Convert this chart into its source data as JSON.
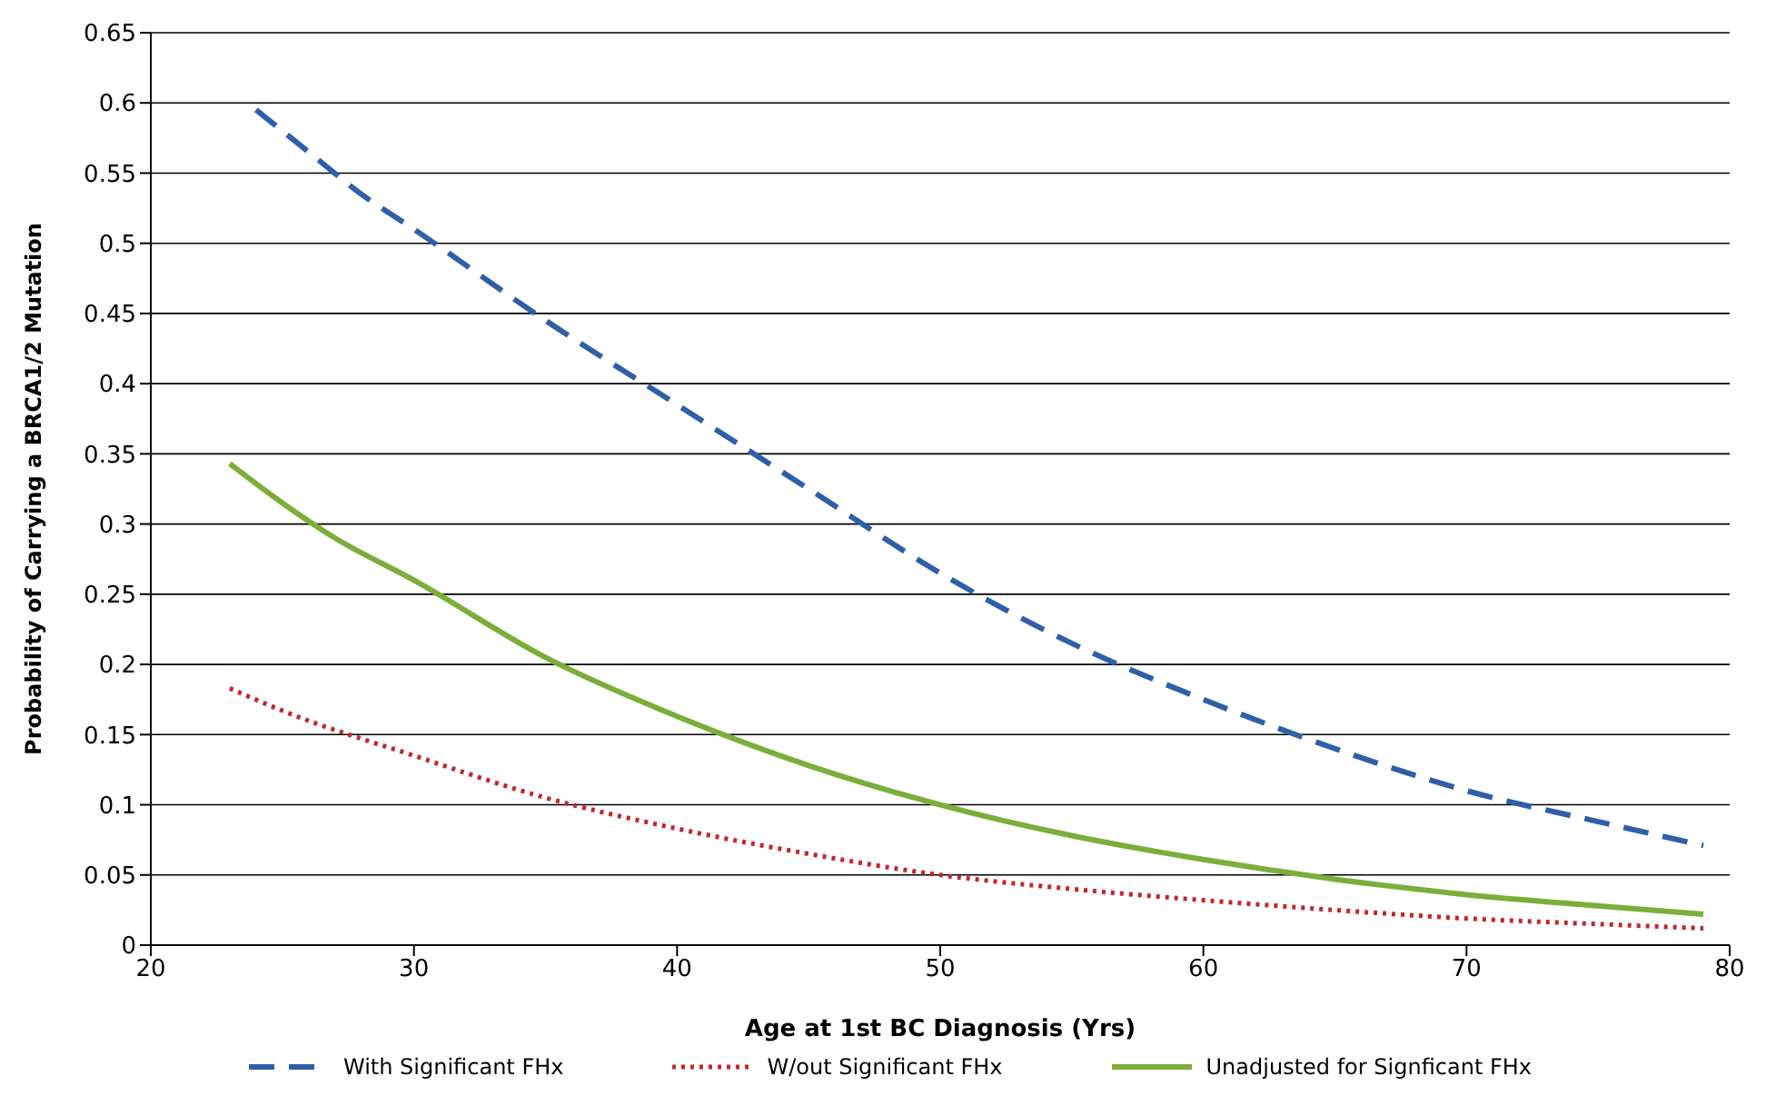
{
  "chart_data": {
    "type": "line",
    "xlabel": "Age at 1st BC Diagnosis (Yrs)",
    "ylabel": "Probability of Carrying a BRCA1/2 Mutation",
    "xlim": [
      20,
      80
    ],
    "xticks": [
      20,
      30,
      40,
      50,
      60,
      70,
      80
    ],
    "ylim": [
      0,
      0.65
    ],
    "yticks": [
      0,
      0.05,
      0.1,
      0.15,
      0.2,
      0.25,
      0.3,
      0.35,
      0.4,
      0.45,
      0.5,
      0.55,
      0.6,
      0.65
    ],
    "grid": "y",
    "legend": "bottom",
    "marker": "none",
    "series": [
      {
        "name": "With Significant FHx",
        "color": "#2e5fa8",
        "line_style": "dashed",
        "x": [
          24,
          26,
          28,
          30,
          35,
          40,
          45,
          50,
          55,
          60,
          65,
          70,
          75,
          79
        ],
        "values": [
          0.595,
          0.565,
          0.535,
          0.51,
          0.445,
          0.385,
          0.325,
          0.265,
          0.215,
          0.175,
          0.14,
          0.11,
          0.088,
          0.071
        ]
      },
      {
        "name": "W/out Significant FHx",
        "color": "#c0282d",
        "line_style": "dotted",
        "x": [
          23,
          25,
          30,
          35,
          40,
          45,
          50,
          55,
          60,
          65,
          70,
          75,
          79
        ],
        "values": [
          0.183,
          0.167,
          0.135,
          0.105,
          0.083,
          0.065,
          0.05,
          0.04,
          0.032,
          0.025,
          0.019,
          0.015,
          0.012
        ]
      },
      {
        "name": "Unadjusted for Signficant FHx",
        "color": "#7bae3a",
        "line_style": "solid",
        "x": [
          23,
          25,
          27,
          30,
          35,
          40,
          45,
          50,
          55,
          60,
          65,
          70,
          75,
          79
        ],
        "values": [
          0.343,
          0.315,
          0.29,
          0.26,
          0.205,
          0.163,
          0.128,
          0.1,
          0.078,
          0.061,
          0.047,
          0.036,
          0.028,
          0.022
        ]
      }
    ]
  }
}
